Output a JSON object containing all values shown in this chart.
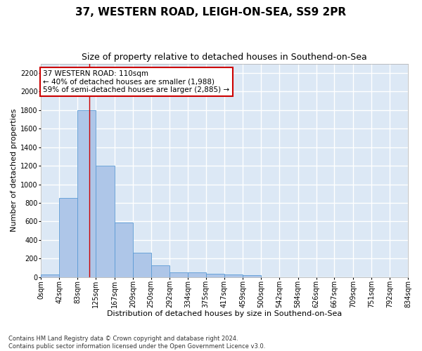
{
  "title": "37, WESTERN ROAD, LEIGH-ON-SEA, SS9 2PR",
  "subtitle": "Size of property relative to detached houses in Southend-on-Sea",
  "xlabel": "Distribution of detached houses by size in Southend-on-Sea",
  "ylabel": "Number of detached properties",
  "bin_edges": [
    0,
    42,
    83,
    125,
    167,
    209,
    250,
    292,
    334,
    375,
    417,
    459,
    500,
    542,
    584,
    626,
    667,
    709,
    751,
    792,
    834
  ],
  "bar_heights": [
    25,
    850,
    1800,
    1200,
    590,
    260,
    125,
    50,
    50,
    35,
    30,
    20,
    0,
    0,
    0,
    0,
    0,
    0,
    0,
    0
  ],
  "bar_color": "#aec6e8",
  "bar_edge_color": "#5b9bd5",
  "property_size": 110,
  "property_line_color": "#cc0000",
  "annotation_line1": "37 WESTERN ROAD: 110sqm",
  "annotation_line2": "← 40% of detached houses are smaller (1,988)",
  "annotation_line3": "59% of semi-detached houses are larger (2,885) →",
  "annotation_box_color": "#ffffff",
  "annotation_box_edge_color": "#cc0000",
  "ylim": [
    0,
    2300
  ],
  "yticks": [
    0,
    200,
    400,
    600,
    800,
    1000,
    1200,
    1400,
    1600,
    1800,
    2000,
    2200
  ],
  "footnote1": "Contains HM Land Registry data © Crown copyright and database right 2024.",
  "footnote2": "Contains public sector information licensed under the Open Government Licence v3.0.",
  "figure_bg": "#ffffff",
  "plot_background": "#dce8f5",
  "grid_color": "#ffffff",
  "title_fontsize": 11,
  "subtitle_fontsize": 9,
  "axis_label_fontsize": 8,
  "tick_fontsize": 7,
  "annotation_fontsize": 7.5
}
